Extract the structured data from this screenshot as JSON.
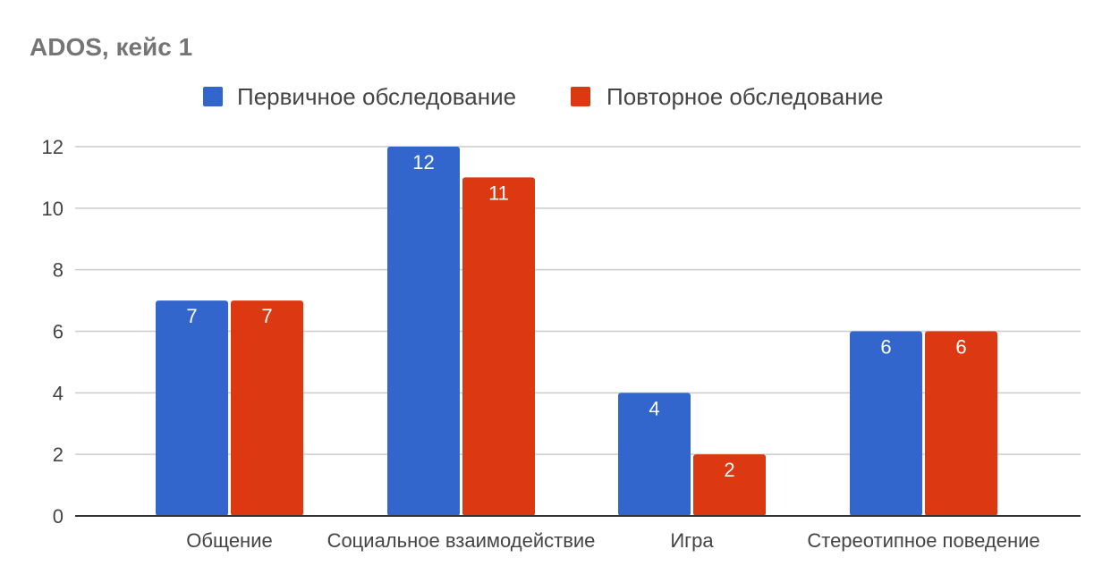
{
  "chart_data": {
    "type": "bar",
    "title": "ADOS, кейс 1",
    "categories": [
      "Общение",
      "Социальное взаимодействие",
      "Игра",
      "Стереотипное поведение"
    ],
    "series": [
      {
        "name": "Первичное обследование",
        "values": [
          7,
          12,
          4,
          6
        ],
        "color": "#3366cc"
      },
      {
        "name": "Повторное обследование",
        "values": [
          7,
          11,
          2,
          6
        ],
        "color": "#dc3912"
      }
    ],
    "ylim": [
      0,
      12
    ],
    "yticks": [
      0,
      2,
      4,
      6,
      8,
      10,
      12
    ],
    "grid": true,
    "legend": "top",
    "data_labels": true
  }
}
